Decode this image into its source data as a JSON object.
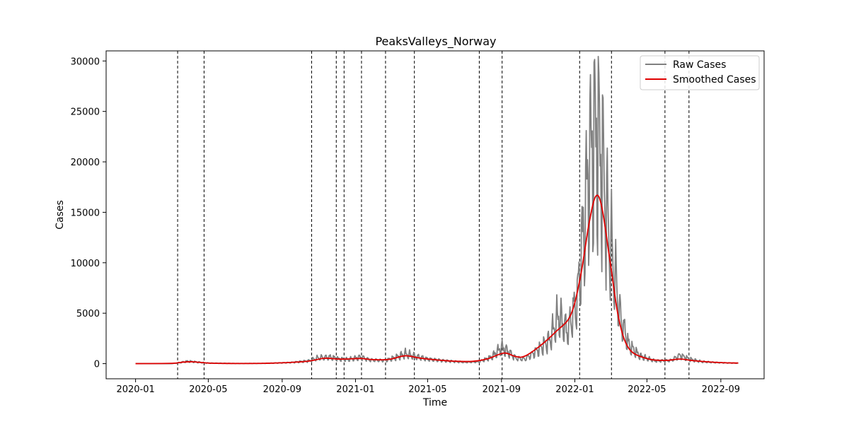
{
  "chart_data": {
    "type": "line",
    "title": "PeaksValleys_Norway",
    "xlabel": "Time",
    "ylabel": "Cases",
    "xlim": [
      "2019-11-13",
      "2022-11-12"
    ],
    "ylim": [
      -1500,
      31000
    ],
    "x_ticks": [
      "2020-01",
      "2020-05",
      "2020-09",
      "2021-01",
      "2021-05",
      "2021-09",
      "2022-01",
      "2022-05",
      "2022-09"
    ],
    "y_ticks": [
      0,
      5000,
      10000,
      15000,
      20000,
      25000,
      30000
    ],
    "grid": false,
    "legend_position": "top-right",
    "series": [
      {
        "name": "Raw Cases",
        "color": "#808080",
        "style": "noisy-daily",
        "points": [
          [
            "2020-01-01",
            0
          ],
          [
            "2020-03-01",
            0
          ],
          [
            "2020-03-15",
            120
          ],
          [
            "2020-03-28",
            260
          ],
          [
            "2020-04-15",
            150
          ],
          [
            "2020-05-01",
            60
          ],
          [
            "2020-06-15",
            20
          ],
          [
            "2020-08-01",
            25
          ],
          [
            "2020-09-15",
            120
          ],
          [
            "2020-10-15",
            300
          ],
          [
            "2020-11-01",
            650
          ],
          [
            "2020-11-20",
            700
          ],
          [
            "2020-12-05",
            500
          ],
          [
            "2020-12-20",
            450
          ],
          [
            "2021-01-10",
            700
          ],
          [
            "2021-01-25",
            400
          ],
          [
            "2021-02-20",
            350
          ],
          [
            "2021-03-10",
            700
          ],
          [
            "2021-03-25",
            1050
          ],
          [
            "2021-04-10",
            800
          ],
          [
            "2021-05-01",
            500
          ],
          [
            "2021-06-01",
            300
          ],
          [
            "2021-07-01",
            150
          ],
          [
            "2021-07-25",
            200
          ],
          [
            "2021-08-15",
            700
          ],
          [
            "2021-09-01",
            1700
          ],
          [
            "2021-09-10",
            1400
          ],
          [
            "2021-09-25",
            600
          ],
          [
            "2021-10-10",
            500
          ],
          [
            "2021-11-01",
            1500
          ],
          [
            "2021-11-20",
            2500
          ],
          [
            "2021-12-05",
            5200
          ],
          [
            "2021-12-20",
            3500
          ],
          [
            "2022-01-05",
            7000
          ],
          [
            "2022-01-15",
            14000
          ],
          [
            "2022-01-25",
            22000
          ],
          [
            "2022-02-05",
            25000
          ],
          [
            "2022-02-15",
            22000
          ],
          [
            "2022-02-25",
            15000
          ],
          [
            "2022-03-08",
            10000
          ],
          [
            "2022-03-18",
            5000
          ],
          [
            "2022-04-01",
            2000
          ],
          [
            "2022-04-20",
            800
          ],
          [
            "2022-05-15",
            300
          ],
          [
            "2022-06-10",
            350
          ],
          [
            "2022-06-25",
            900
          ],
          [
            "2022-07-10",
            500
          ],
          [
            "2022-08-01",
            200
          ],
          [
            "2022-09-01",
            100
          ],
          [
            "2022-09-30",
            50
          ]
        ]
      },
      {
        "name": "Smoothed Cases",
        "color": "#e00000",
        "style": "smooth",
        "points": [
          [
            "2020-01-01",
            0
          ],
          [
            "2020-03-01",
            30
          ],
          [
            "2020-03-20",
            150
          ],
          [
            "2020-04-05",
            180
          ],
          [
            "2020-05-01",
            60
          ],
          [
            "2020-06-01",
            20
          ],
          [
            "2020-08-01",
            30
          ],
          [
            "2020-09-15",
            120
          ],
          [
            "2020-10-15",
            250
          ],
          [
            "2020-11-10",
            530
          ],
          [
            "2020-12-01",
            460
          ],
          [
            "2020-12-15",
            450
          ],
          [
            "2021-01-10",
            510
          ],
          [
            "2021-01-25",
            420
          ],
          [
            "2021-02-15",
            380
          ],
          [
            "2021-03-01",
            450
          ],
          [
            "2021-03-25",
            780
          ],
          [
            "2021-04-15",
            580
          ],
          [
            "2021-05-10",
            400
          ],
          [
            "2021-06-15",
            240
          ],
          [
            "2021-07-15",
            230
          ],
          [
            "2021-08-10",
            500
          ],
          [
            "2021-09-05",
            1050
          ],
          [
            "2021-09-25",
            700
          ],
          [
            "2021-10-10",
            750
          ],
          [
            "2021-11-05",
            1800
          ],
          [
            "2021-12-01",
            3200
          ],
          [
            "2021-12-25",
            4800
          ],
          [
            "2022-01-10",
            8500
          ],
          [
            "2022-01-25",
            14000
          ],
          [
            "2022-02-05",
            16600
          ],
          [
            "2022-02-15",
            15500
          ],
          [
            "2022-03-01",
            10000
          ],
          [
            "2022-03-15",
            4500
          ],
          [
            "2022-04-01",
            1500
          ],
          [
            "2022-05-01",
            500
          ],
          [
            "2022-06-01",
            320
          ],
          [
            "2022-06-25",
            450
          ],
          [
            "2022-07-20",
            280
          ],
          [
            "2022-09-01",
            100
          ],
          [
            "2022-09-30",
            60
          ]
        ]
      }
    ],
    "vertical_lines": [
      "2020-03-11",
      "2020-04-24",
      "2020-10-20",
      "2020-11-30",
      "2020-12-13",
      "2021-01-11",
      "2021-02-20",
      "2021-04-09",
      "2021-07-26",
      "2021-09-02",
      "2022-01-09",
      "2022-03-03",
      "2022-05-31",
      "2022-07-10"
    ]
  }
}
